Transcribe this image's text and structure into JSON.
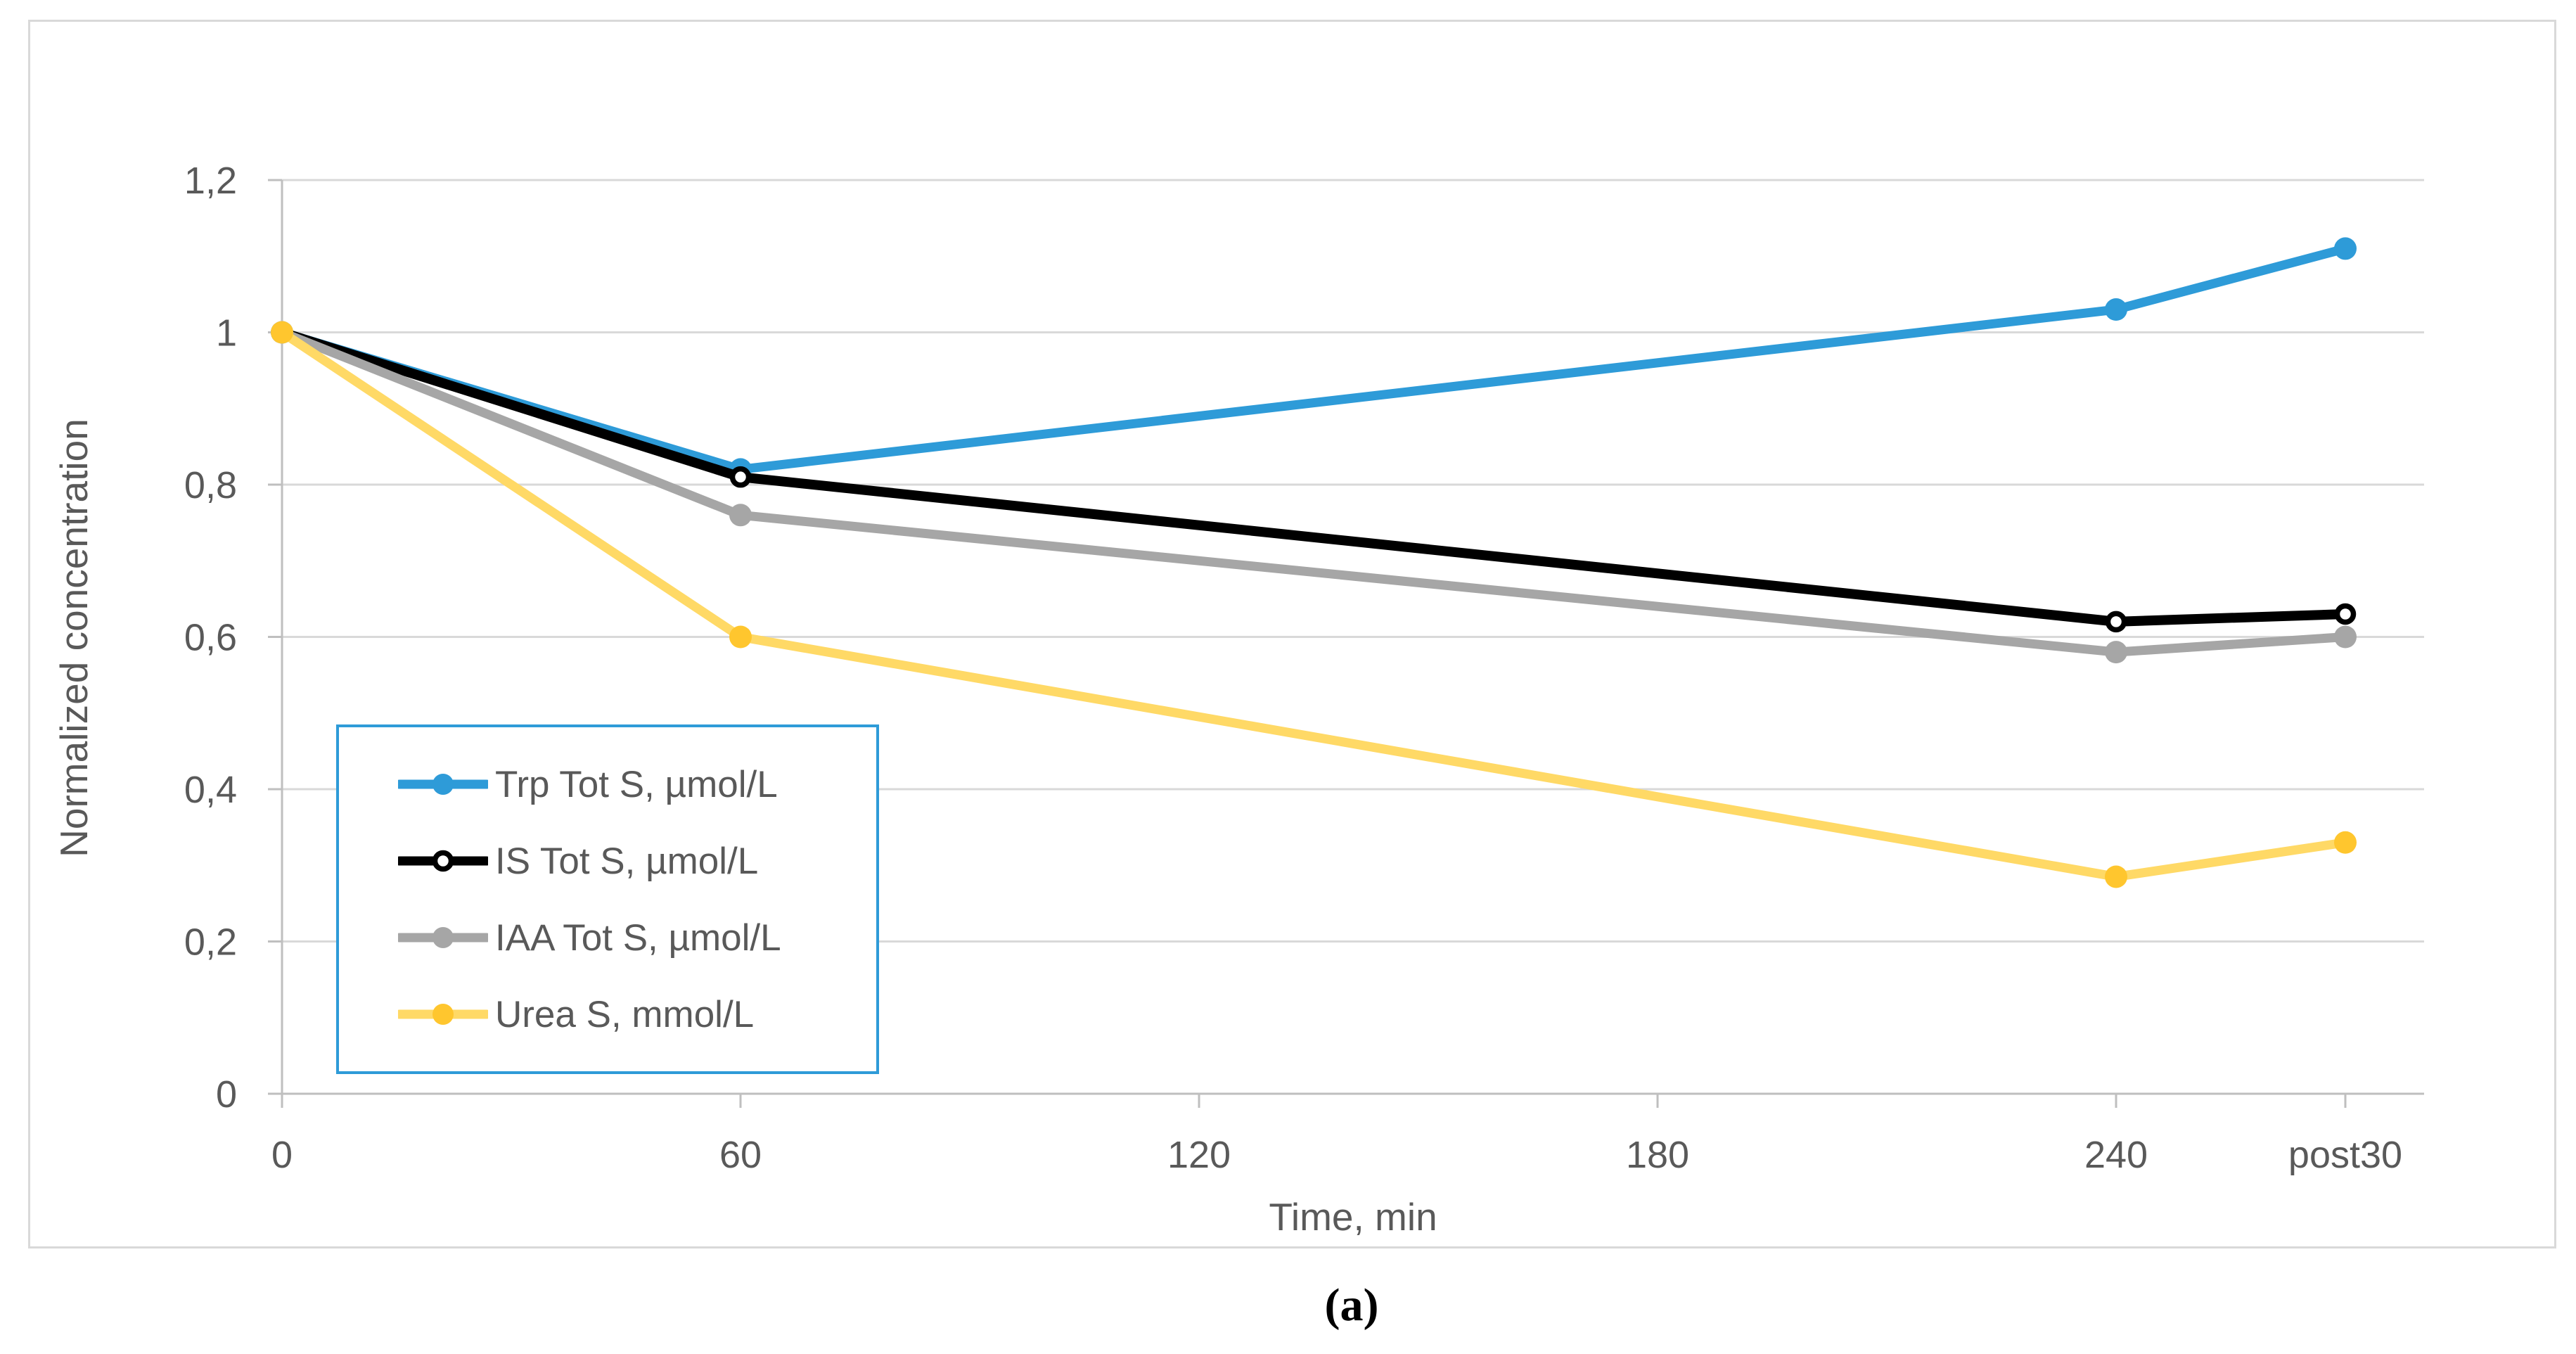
{
  "figure": {
    "caption": "(a)"
  },
  "chart_data": {
    "type": "line",
    "title": "",
    "xlabel": "Time, min",
    "ylabel": "Normalized concentration",
    "x": [
      0,
      60,
      240,
      270
    ],
    "x_point_labels": [
      "0",
      "60",
      "240",
      "post30"
    ],
    "x_ticks": [
      {
        "label": "0",
        "t": 0
      },
      {
        "label": "60",
        "t": 60
      },
      {
        "label": "120",
        "t": 120
      },
      {
        "label": "180",
        "t": 180
      },
      {
        "label": "240",
        "t": 240
      },
      {
        "label": "post30",
        "t": 270
      }
    ],
    "xlim": [
      0,
      280
    ],
    "ylim": [
      0,
      1.2
    ],
    "y_ticks": [
      {
        "label": "0",
        "v": 0
      },
      {
        "label": "0,2",
        "v": 0.2
      },
      {
        "label": "0,4",
        "v": 0.4
      },
      {
        "label": "0,6",
        "v": 0.6
      },
      {
        "label": "0,8",
        "v": 0.8
      },
      {
        "label": "1",
        "v": 1.0
      },
      {
        "label": "1,2",
        "v": 1.2
      }
    ],
    "grid": true,
    "legend_position": "lower-left",
    "series": [
      {
        "key": "trp",
        "name": "Trp Tot S, µmol/L",
        "line_color": "#2E9BD8",
        "marker_style": "solid",
        "marker_color": "#2E9BD8",
        "values": [
          1.0,
          0.82,
          1.03,
          1.11
        ]
      },
      {
        "key": "is",
        "name": "IS Tot S, µmol/L",
        "line_color": "#000000",
        "marker_style": "open",
        "marker_color": "#000000",
        "values": [
          1.0,
          0.81,
          0.62,
          0.63
        ]
      },
      {
        "key": "iaa",
        "name": "IAA Tot S, µmol/L",
        "line_color": "#A6A6A6",
        "marker_style": "solid",
        "marker_color": "#A6A6A6",
        "values": [
          1.0,
          0.76,
          0.58,
          0.6
        ]
      },
      {
        "key": "urea",
        "name": "Urea S, mmol/L",
        "line_color": "#FFD966",
        "marker_style": "solid",
        "marker_color": "#FFC62E",
        "values": [
          1.0,
          0.6,
          0.285,
          0.33
        ]
      }
    ],
    "colors": {
      "gridline": "#D9D9D9",
      "axis_line": "#BFBFBF",
      "tick_label": "#595959",
      "legend_border": "#2E9BD8",
      "figure_border": "#D9D9D9"
    }
  }
}
